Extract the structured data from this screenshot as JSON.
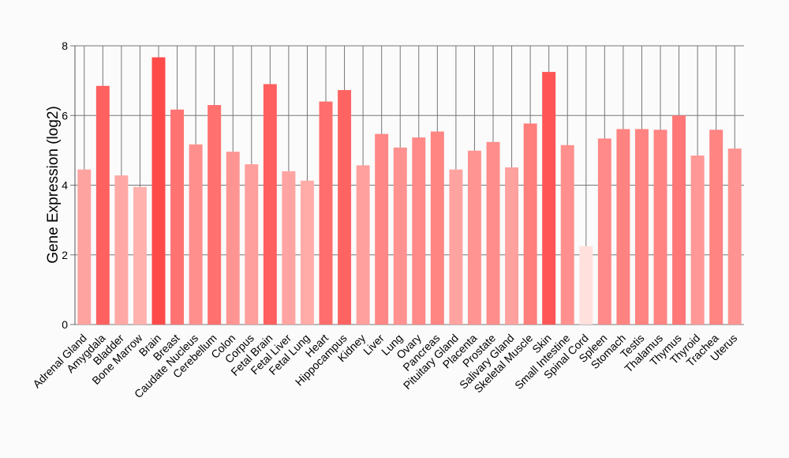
{
  "chart_data": {
    "type": "bar",
    "ylabel": "Gene Expression (log2)",
    "ylim": [
      0,
      8
    ],
    "yticks": [
      0,
      2,
      4,
      6,
      8
    ],
    "grid": true,
    "categories": [
      "Adrenal Gland",
      "Amygdala",
      "Bladder",
      "Bone Marrow",
      "Brain",
      "Breast",
      "Caudate Nucleus",
      "Cerebellum",
      "Colon",
      "Corpus",
      "Fetal Brain",
      "Fetal Liver",
      "Fetal Lung",
      "Heart",
      "Hippocampus",
      "Kidney",
      "Liver",
      "Lung",
      "Ovary",
      "Pancreas",
      "Pituitary Gland",
      "Placenta",
      "Prostate",
      "Salivary Gland",
      "Skeletal Muscle",
      "Skin",
      "Small Intestine",
      "Spinal Cord",
      "Spleen",
      "Stomach",
      "Testis",
      "Thalamus",
      "Thymus",
      "Thyroid",
      "Trachea",
      "Uterus"
    ],
    "values": [
      4.45,
      6.85,
      4.28,
      3.95,
      7.67,
      6.17,
      5.17,
      6.3,
      4.96,
      4.6,
      6.9,
      4.4,
      4.13,
      6.4,
      6.73,
      4.57,
      5.47,
      5.08,
      5.37,
      5.54,
      4.45,
      4.99,
      5.24,
      4.51,
      5.77,
      7.25,
      5.15,
      2.25,
      5.34,
      5.61,
      5.61,
      5.59,
      6.0,
      4.85,
      5.59,
      5.05
    ],
    "color_scale": {
      "low": "#ffe0dc",
      "high": "#ff4a4a"
    }
  }
}
